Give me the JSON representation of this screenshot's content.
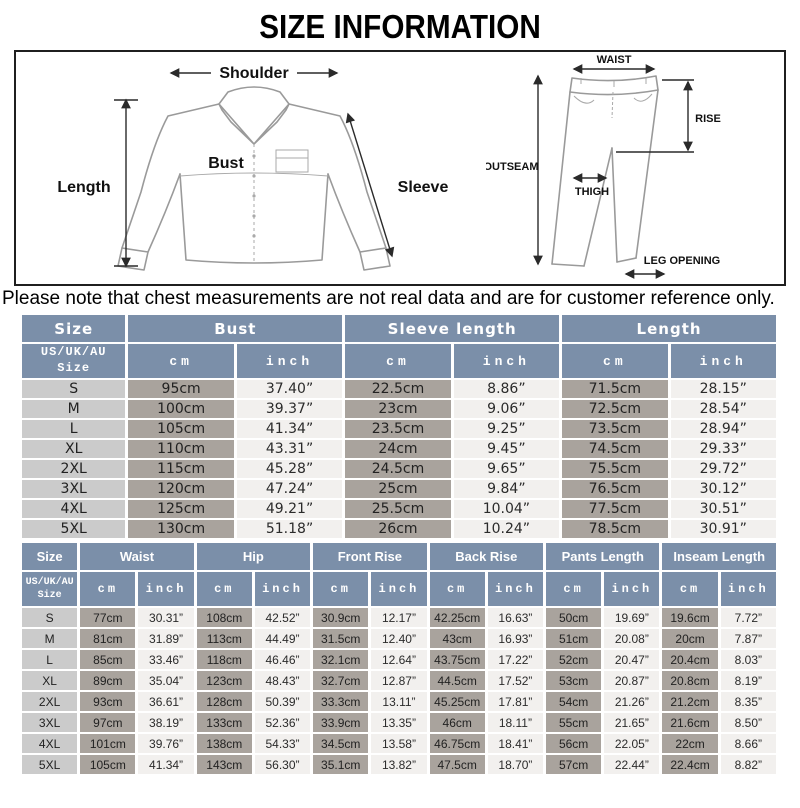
{
  "title": "SIZE INFORMATION",
  "note": "Please note that chest measurements are not real data and are for customer reference only.",
  "colors": {
    "header_bg": "#7b8fa9",
    "size_cell_bg": "#cbcbcb",
    "cm_cell_bg": "#a9a39d",
    "inch_cell_bg": "#f2f0ee",
    "garment_line": "#9a9a9a"
  },
  "shirt_diagram": {
    "shoulder": "Shoulder",
    "bust": "Bust",
    "length": "Length",
    "sleeve": "Sleeve"
  },
  "pants_diagram": {
    "waist": "WAIST",
    "rise": "RISE",
    "outseam": "OUTSEAM",
    "thigh": "THIGH",
    "leg_opening": "LEG OPENING"
  },
  "top_table": {
    "groups": [
      "Size",
      "Bust",
      "Sleeve length",
      "Length"
    ],
    "size_header": "US/UK/AU Size",
    "unit_headers": [
      "cm",
      "inch"
    ],
    "rows": [
      {
        "size": "S",
        "values": [
          "95cm",
          "37.40”",
          "22.5cm",
          "8.86”",
          "71.5cm",
          "28.15”"
        ]
      },
      {
        "size": "M",
        "values": [
          "100cm",
          "39.37”",
          "23cm",
          "9.06”",
          "72.5cm",
          "28.54”"
        ]
      },
      {
        "size": "L",
        "values": [
          "105cm",
          "41.34”",
          "23.5cm",
          "9.25”",
          "73.5cm",
          "28.94”"
        ]
      },
      {
        "size": "XL",
        "values": [
          "110cm",
          "43.31”",
          "24cm",
          "9.45”",
          "74.5cm",
          "29.33”"
        ]
      },
      {
        "size": "2XL",
        "values": [
          "115cm",
          "45.28”",
          "24.5cm",
          "9.65”",
          "75.5cm",
          "29.72”"
        ]
      },
      {
        "size": "3XL",
        "values": [
          "120cm",
          "47.24”",
          "25cm",
          "9.84”",
          "76.5cm",
          "30.12”"
        ]
      },
      {
        "size": "4XL",
        "values": [
          "125cm",
          "49.21”",
          "25.5cm",
          "10.04”",
          "77.5cm",
          "30.51”"
        ]
      },
      {
        "size": "5XL",
        "values": [
          "130cm",
          "51.18”",
          "26cm",
          "10.24”",
          "78.5cm",
          "30.91”"
        ]
      }
    ]
  },
  "bottom_table": {
    "groups": [
      "Size",
      "Waist",
      "Hip",
      "Front Rise",
      "Back Rise",
      "Pants Length",
      "Inseam Length"
    ],
    "size_header": "US/UK/AU Size",
    "unit_headers": [
      "cm",
      "inch"
    ],
    "rows": [
      {
        "size": "S",
        "values": [
          "77cm",
          "30.31”",
          "108cm",
          "42.52”",
          "30.9cm",
          "12.17”",
          "42.25cm",
          "16.63”",
          "50cm",
          "19.69”",
          "19.6cm",
          "7.72”"
        ]
      },
      {
        "size": "M",
        "values": [
          "81cm",
          "31.89”",
          "113cm",
          "44.49”",
          "31.5cm",
          "12.40”",
          "43cm",
          "16.93”",
          "51cm",
          "20.08”",
          "20cm",
          "7.87”"
        ]
      },
      {
        "size": "L",
        "values": [
          "85cm",
          "33.46”",
          "118cm",
          "46.46”",
          "32.1cm",
          "12.64”",
          "43.75cm",
          "17.22”",
          "52cm",
          "20.47”",
          "20.4cm",
          "8.03”"
        ]
      },
      {
        "size": "XL",
        "values": [
          "89cm",
          "35.04”",
          "123cm",
          "48.43”",
          "32.7cm",
          "12.87”",
          "44.5cm",
          "17.52”",
          "53cm",
          "20.87”",
          "20.8cm",
          "8.19”"
        ]
      },
      {
        "size": "2XL",
        "values": [
          "93cm",
          "36.61”",
          "128cm",
          "50.39”",
          "33.3cm",
          "13.11”",
          "45.25cm",
          "17.81”",
          "54cm",
          "21.26”",
          "21.2cm",
          "8.35”"
        ]
      },
      {
        "size": "3XL",
        "values": [
          "97cm",
          "38.19”",
          "133cm",
          "52.36”",
          "33.9cm",
          "13.35”",
          "46cm",
          "18.11”",
          "55cm",
          "21.65”",
          "21.6cm",
          "8.50”"
        ]
      },
      {
        "size": "4XL",
        "values": [
          "101cm",
          "39.76”",
          "138cm",
          "54.33”",
          "34.5cm",
          "13.58”",
          "46.75cm",
          "18.41”",
          "56cm",
          "22.05”",
          "22cm",
          "8.66”"
        ]
      },
      {
        "size": "5XL",
        "values": [
          "105cm",
          "41.34”",
          "143cm",
          "56.30”",
          "35.1cm",
          "13.82”",
          "47.5cm",
          "18.70”",
          "57cm",
          "22.44”",
          "22.4cm",
          "8.82”"
        ]
      }
    ]
  }
}
